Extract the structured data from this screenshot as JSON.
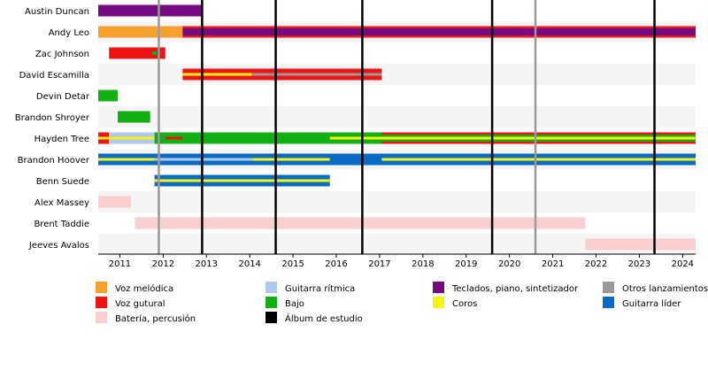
{
  "chart_data": {
    "type": "timeline",
    "title": "",
    "xlabel": "",
    "ylabel": "",
    "xlim": [
      2010.5,
      2024.3
    ],
    "x_ticks": [
      "2011",
      "2012",
      "2013",
      "2014",
      "2015",
      "2016",
      "2017",
      "2018",
      "2019",
      "2020",
      "2021",
      "2022",
      "2023",
      "2024"
    ],
    "members": [
      "Austin Duncan",
      "Andy Leo",
      "Zac Johnson",
      "David Escamilla",
      "Devin Detar",
      "Brandon Shroyer",
      "Hayden Tree",
      "Brandon Hoover",
      "Benn Suede",
      "Alex Massey",
      "Brent Taddie",
      "Jeeves Avalos"
    ],
    "roles": {
      "vocals": {
        "label": "Voz melódica",
        "color": "#f6a030"
      },
      "screams": {
        "label": "Voz gutural",
        "color": "#ef1414"
      },
      "lead": {
        "label": "Guitarra líder",
        "color": "#0a6ac4"
      },
      "rhythm": {
        "label": "Guitarra rítmica",
        "color": "#b1c9ef"
      },
      "bass": {
        "label": "Bajo",
        "color": "#12b015"
      },
      "drums": {
        "label": "Batería, percusión",
        "color": "#f9cfcf"
      },
      "keys": {
        "label": "Teclados, piano, sintetizador",
        "color": "#760a82"
      },
      "backing": {
        "label": "Coros",
        "color": "#f6f412"
      },
      "album": {
        "label": "Álbum de estudio",
        "color": "#000000"
      },
      "other": {
        "label": "Otros lanzamientos",
        "color": "#999999"
      }
    },
    "legend_order": [
      "vocals",
      "rhythm",
      "keys",
      "other",
      "screams",
      "bass",
      "backing",
      "lead",
      "drums",
      "album"
    ],
    "bars": [
      {
        "member": "Austin Duncan",
        "start": 2010.5,
        "end": 2012.9,
        "role": "keys"
      },
      {
        "member": "Andy Leo",
        "start": 2010.5,
        "end": 2024.3,
        "role": "vocals"
      },
      {
        "member": "Andy Leo",
        "start": 2012.45,
        "end": 2024.3,
        "role": "keys"
      },
      {
        "member": "Andy Leo",
        "start": 2012.45,
        "end": 2024.3,
        "role": "screams",
        "inner": "outline"
      },
      {
        "member": "Zac Johnson",
        "start": 2010.75,
        "end": 2012.05,
        "role": "screams"
      },
      {
        "member": "Zac Johnson",
        "start": 2011.75,
        "end": 2011.85,
        "role": "bass",
        "inner": "dot"
      },
      {
        "member": "David Escamilla",
        "start": 2012.45,
        "end": 2017.05,
        "role": "screams"
      },
      {
        "member": "David Escamilla",
        "start": 2012.45,
        "end": 2014.05,
        "role": "backing",
        "inner": "line"
      },
      {
        "member": "David Escamilla",
        "start": 2014.05,
        "end": 2017.05,
        "role": "other",
        "inner": "line"
      },
      {
        "member": "Devin Detar",
        "start": 2010.5,
        "end": 2010.95,
        "role": "bass"
      },
      {
        "member": "Brandon Shroyer",
        "start": 2010.95,
        "end": 2011.7,
        "role": "bass"
      },
      {
        "member": "Hayden Tree",
        "start": 2010.5,
        "end": 2010.75,
        "role": "screams"
      },
      {
        "member": "Hayden Tree",
        "start": 2010.5,
        "end": 2010.75,
        "role": "backing",
        "inner": "line"
      },
      {
        "member": "Hayden Tree",
        "start": 2010.75,
        "end": 2011.8,
        "role": "rhythm"
      },
      {
        "member": "Hayden Tree",
        "start": 2010.75,
        "end": 2011.8,
        "role": "backing",
        "inner": "line"
      },
      {
        "member": "Hayden Tree",
        "start": 2011.8,
        "end": 2024.3,
        "role": "bass"
      },
      {
        "member": "Hayden Tree",
        "start": 2012.05,
        "end": 2012.45,
        "role": "screams",
        "inner": "line"
      },
      {
        "member": "Hayden Tree",
        "start": 2015.85,
        "end": 2017.05,
        "role": "backing",
        "inner": "line"
      },
      {
        "member": "Hayden Tree",
        "start": 2017.05,
        "end": 2024.3,
        "role": "screams",
        "inner": "outline"
      },
      {
        "member": "Hayden Tree",
        "start": 2017.05,
        "end": 2024.3,
        "role": "backing",
        "inner": "line"
      },
      {
        "member": "Brandon Hoover",
        "start": 2010.5,
        "end": 2024.3,
        "role": "lead"
      },
      {
        "member": "Brandon Hoover",
        "start": 2010.5,
        "end": 2011.8,
        "role": "backing",
        "inner": "line"
      },
      {
        "member": "Brandon Hoover",
        "start": 2011.8,
        "end": 2014.05,
        "role": "rhythm",
        "inner": "line"
      },
      {
        "member": "Brandon Hoover",
        "start": 2014.05,
        "end": 2015.85,
        "role": "backing",
        "inner": "line"
      },
      {
        "member": "Brandon Hoover",
        "start": 2017.05,
        "end": 2024.3,
        "role": "backing",
        "inner": "line"
      },
      {
        "member": "Benn Suede",
        "start": 2011.8,
        "end": 2015.85,
        "role": "lead"
      },
      {
        "member": "Benn Suede",
        "start": 2011.8,
        "end": 2015.85,
        "role": "backing",
        "inner": "line"
      },
      {
        "member": "Alex Massey",
        "start": 2010.5,
        "end": 2011.25,
        "role": "drums"
      },
      {
        "member": "Brent Taddie",
        "start": 2011.35,
        "end": 2021.75,
        "role": "drums"
      },
      {
        "member": "Jeeves Avalos",
        "start": 2021.75,
        "end": 2024.3,
        "role": "drums"
      }
    ],
    "markers": [
      {
        "x": 2011.9,
        "role": "other"
      },
      {
        "x": 2012.9,
        "role": "album"
      },
      {
        "x": 2014.6,
        "role": "album"
      },
      {
        "x": 2016.6,
        "role": "album"
      },
      {
        "x": 2019.6,
        "role": "album"
      },
      {
        "x": 2020.6,
        "role": "other"
      },
      {
        "x": 2023.35,
        "role": "album"
      }
    ]
  }
}
